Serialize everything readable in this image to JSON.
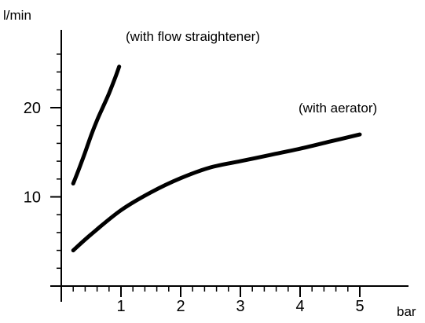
{
  "chart_data": {
    "type": "line",
    "ylabel": "l/min",
    "xlabel": "bar",
    "xlim": [
      0,
      5.4
    ],
    "ylim": [
      0,
      27
    ],
    "x_ticks": [
      1,
      2,
      3,
      4,
      5
    ],
    "x_tick_labels": [
      "1",
      "2",
      "3",
      "4",
      "5"
    ],
    "y_ticks": [
      10,
      20
    ],
    "y_tick_labels": [
      "10",
      "20"
    ],
    "x_minor_step": 0.2,
    "y_minor_step": 2,
    "grid": false,
    "legend": "none",
    "series": [
      {
        "label": "(with flow straightener)",
        "x": [
          0.2,
          0.3,
          0.4,
          0.5,
          0.6,
          0.7,
          0.8,
          0.9,
          0.97
        ],
        "y": [
          11.5,
          13.2,
          15.0,
          16.9,
          18.6,
          20.1,
          21.6,
          23.3,
          24.6
        ]
      },
      {
        "label": "(with aerator)",
        "x": [
          0.2,
          0.5,
          1.0,
          1.5,
          2.0,
          2.5,
          3.0,
          3.5,
          4.0,
          4.5,
          5.0
        ],
        "y": [
          4.0,
          5.8,
          8.5,
          10.5,
          12.1,
          13.3,
          14.0,
          14.7,
          15.4,
          16.2,
          17.0
        ]
      }
    ]
  }
}
